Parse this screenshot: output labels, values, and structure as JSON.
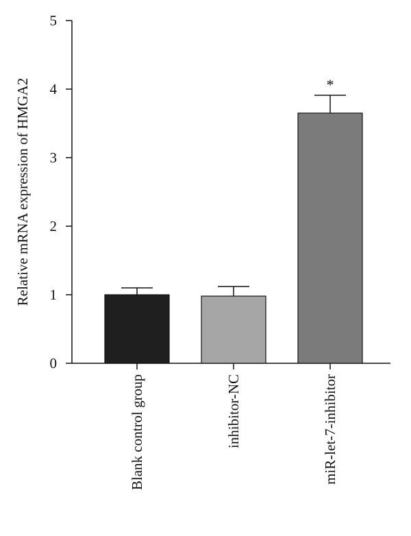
{
  "chart_data": {
    "type": "bar",
    "categories": [
      "Blank control group",
      "inhibitor-NC",
      "miR-let-7-inhibitor"
    ],
    "values": [
      1.0,
      0.98,
      3.65
    ],
    "error": [
      0.1,
      0.14,
      0.26
    ],
    "significance": [
      "",
      "",
      "*"
    ],
    "bar_colors": [
      "#1f1f1f",
      "#a6a6a6",
      "#7b7b7b"
    ],
    "title": "",
    "xlabel": "",
    "ylabel": "Relative mRNA expression of HMGA2",
    "ylim": [
      0,
      5
    ],
    "yticks": [
      "0",
      "1",
      "2",
      "3",
      "4",
      "5"
    ],
    "grid": false,
    "legend": "none"
  }
}
